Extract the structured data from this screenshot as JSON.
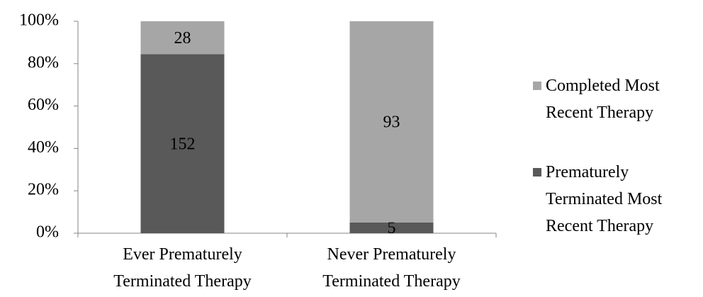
{
  "chart_data": {
    "type": "stacked100",
    "categories": [
      "Ever Prematurely Terminated Therapy",
      "Never Prematurely Terminated Therapy"
    ],
    "series": [
      {
        "name": "Completed Most Recent Therapy",
        "color": "#a6a6a6",
        "values": [
          28,
          93
        ]
      },
      {
        "name": "Prematurely Terminated Most Recent Therapy",
        "color": "#595959",
        "values": [
          152,
          5
        ]
      }
    ],
    "ylim": [
      0,
      100
    ],
    "yticks": [
      {
        "value": 0,
        "label": "0%"
      },
      {
        "value": 20,
        "label": "20%"
      },
      {
        "value": 40,
        "label": "40%"
      },
      {
        "value": 60,
        "label": "60%"
      },
      {
        "value": 80,
        "label": "80%"
      },
      {
        "value": 100,
        "label": "100%"
      }
    ],
    "legend": "right"
  }
}
